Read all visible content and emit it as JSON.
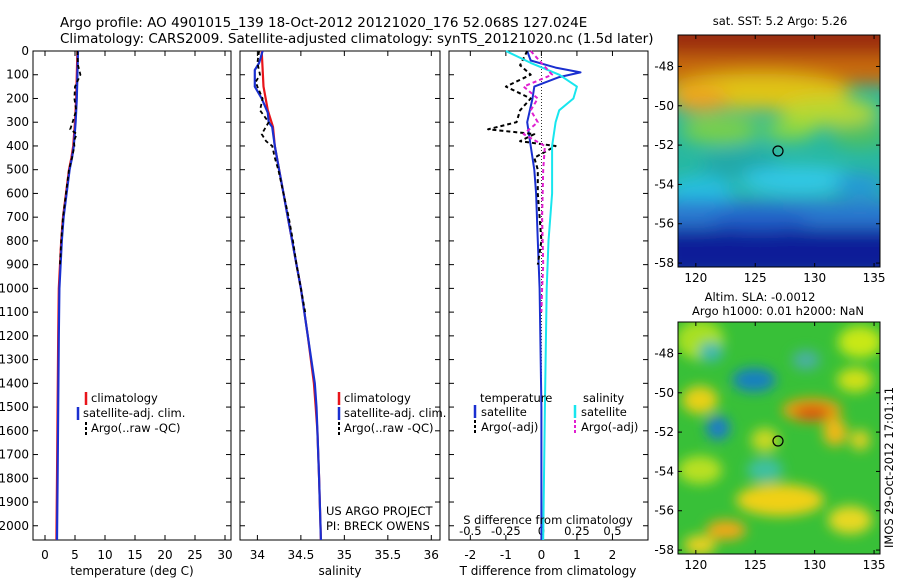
{
  "header": {
    "line1": "Argo profile: AO 4901015_139 18-Oct-2012 20121020_176 52.068S 127.024E",
    "line2": "Climatology: CARS2009. Satellite-adjusted climatology: synTS_20121020.nc (1.5d later)"
  },
  "colors": {
    "clim": "#e8141a",
    "sat": "#1a2fd0",
    "argo": "#000000",
    "cyan": "#18e6ee",
    "magenta": "#e020d0"
  },
  "chart_data": [
    {
      "type": "line",
      "name": "temperature-profile",
      "xlabel": "temperature (deg C)",
      "xlim": [
        -2,
        31
      ],
      "ylim": [
        2060,
        0
      ],
      "xticks": [
        0,
        5,
        10,
        15,
        20,
        25,
        30
      ],
      "yticks": [
        0,
        100,
        200,
        300,
        400,
        500,
        600,
        700,
        800,
        900,
        1000,
        1100,
        1200,
        1300,
        1400,
        1500,
        1600,
        1700,
        1800,
        1900,
        2000
      ],
      "legend": [
        "climatology",
        "satellite-adj. clim.",
        "Argo(..raw -QC)"
      ],
      "series": [
        {
          "key": "climatology",
          "depth": [
            0,
            100,
            200,
            300,
            400,
            450,
            500,
            600,
            700,
            800,
            900,
            1000,
            1200,
            1500,
            1800,
            2060
          ],
          "values": [
            5.4,
            5.3,
            5.2,
            5.0,
            4.7,
            4.4,
            4.0,
            3.5,
            3.0,
            2.7,
            2.5,
            2.3,
            2.2,
            2.1,
            2.0,
            1.9
          ]
        },
        {
          "key": "satellite",
          "depth": [
            0,
            100,
            200,
            300,
            400,
            450,
            500,
            600,
            700,
            800,
            900,
            1000,
            1200,
            1500,
            1800,
            2060
          ],
          "values": [
            5.5,
            5.4,
            5.3,
            5.1,
            4.8,
            4.5,
            4.1,
            3.6,
            3.1,
            2.8,
            2.6,
            2.4,
            2.3,
            2.2,
            2.1,
            2.0
          ]
        },
        {
          "key": "argo",
          "depth": [
            0,
            60,
            100,
            150,
            200,
            250,
            300,
            330,
            350,
            380,
            400,
            450,
            500,
            600,
            700,
            800,
            900
          ],
          "values": [
            5.4,
            5.5,
            5.9,
            5.0,
            4.9,
            5.2,
            4.6,
            4.2,
            5.3,
            4.8,
            4.9,
            4.5,
            4.0,
            3.5,
            3.0,
            2.7,
            2.5
          ]
        }
      ]
    },
    {
      "type": "line",
      "name": "salinity-profile",
      "xlabel": "salinity",
      "xlim": [
        33.8,
        36.1
      ],
      "ylim": [
        2060,
        0
      ],
      "xticks": [
        34,
        34.5,
        35,
        35.5,
        36
      ],
      "legend": [
        "climatology",
        "satellite-adj. clim.",
        "Argo(..raw -QC)"
      ],
      "annotation": [
        "US ARGO PROJECT",
        "PI: BRECK OWENS"
      ],
      "series": [
        {
          "key": "climatology",
          "depth": [
            0,
            150,
            250,
            320,
            400,
            500,
            600,
            700,
            800,
            900,
            1000,
            1200,
            1400,
            1500,
            1600,
            1800,
            2060
          ],
          "values": [
            34.05,
            34.07,
            34.12,
            34.18,
            34.2,
            34.25,
            34.3,
            34.35,
            34.4,
            34.45,
            34.5,
            34.58,
            34.65,
            34.67,
            34.69,
            34.71,
            34.73
          ]
        },
        {
          "key": "satellite",
          "depth": [
            0,
            50,
            80,
            150,
            200,
            260,
            300,
            320,
            400,
            500,
            600,
            700,
            800,
            900,
            1000,
            1200,
            1400,
            1500,
            1600,
            1800,
            2060
          ],
          "values": [
            34.06,
            34.02,
            33.97,
            33.97,
            34.05,
            34.12,
            34.13,
            34.17,
            34.2,
            34.25,
            34.3,
            34.35,
            34.4,
            34.45,
            34.5,
            34.58,
            34.66,
            34.68,
            34.69,
            34.71,
            34.73
          ]
        },
        {
          "key": "argo",
          "depth": [
            0,
            50,
            100,
            130,
            150,
            200,
            250,
            270,
            300,
            350,
            380,
            400,
            450,
            500,
            600,
            700,
            800,
            900,
            1000,
            1100
          ],
          "values": [
            34.02,
            34.0,
            34.03,
            33.98,
            34.0,
            34.06,
            34.03,
            34.07,
            34.13,
            34.05,
            34.1,
            34.17,
            34.2,
            34.24,
            34.3,
            34.36,
            34.41,
            34.45,
            34.5,
            34.55
          ]
        }
      ]
    },
    {
      "type": "line",
      "name": "difference-profile",
      "xlabel": "T difference from climatology",
      "xlabel2": "S difference from climatology",
      "xlim": [
        -2.6,
        3.0
      ],
      "ylim": [
        2060,
        0
      ],
      "xticks": [
        -2,
        -1,
        0,
        1,
        2
      ],
      "xticks2": [
        {
          "pos": -2,
          "label": "-0.5"
        },
        {
          "pos": -1,
          "label": "-0.25"
        },
        {
          "pos": 0,
          "label": "0"
        },
        {
          "pos": 1,
          "label": "0.25"
        },
        {
          "pos": 2,
          "label": "0.5"
        }
      ],
      "legend": {
        "temperature": [
          "satellite",
          "Argo(-adj)"
        ],
        "salinity": [
          "satellite",
          "Argo(-adj)"
        ]
      },
      "series": [
        {
          "key": "t_sat",
          "depth": [
            0,
            40,
            70,
            90,
            110,
            150,
            200,
            300,
            400,
            500,
            600,
            800,
            1000,
            1500,
            2060
          ],
          "values": [
            -0.4,
            -0.3,
            0.4,
            1.1,
            0.5,
            -0.2,
            -0.25,
            -0.4,
            -0.3,
            -0.2,
            -0.15,
            -0.1,
            -0.05,
            0,
            0
          ]
        },
        {
          "key": "t_argo",
          "depth": [
            0,
            60,
            100,
            150,
            200,
            250,
            300,
            330,
            350,
            380,
            400,
            450,
            500,
            600,
            800,
            900
          ],
          "values": [
            -0.4,
            -0.6,
            -0.3,
            -1.0,
            -0.3,
            -0.6,
            -0.7,
            -1.5,
            -0.2,
            -0.6,
            0.4,
            -0.2,
            -0.1,
            -0.1,
            0,
            -0.1
          ]
        },
        {
          "key": "s_sat",
          "depth": [
            0,
            50,
            100,
            150,
            200,
            250,
            300,
            400,
            500,
            600,
            800,
            1000,
            1500,
            2060
          ],
          "values": [
            -1.0,
            -0.3,
            0.5,
            1.0,
            0.9,
            0.5,
            0.4,
            0.3,
            0.3,
            0.3,
            0.2,
            0.15,
            0.1,
            0.05
          ]
        },
        {
          "key": "s_argo",
          "depth": [
            0,
            100,
            150,
            200,
            250,
            300,
            350,
            400,
            500,
            700,
            900,
            1000,
            1100
          ],
          "values": [
            -0.3,
            0.3,
            -0.5,
            -0.1,
            -0.3,
            -0.1,
            -0.5,
            0.1,
            0.05,
            0.02,
            0.05,
            0.02,
            0.0
          ]
        }
      ]
    },
    {
      "type": "heatmap",
      "name": "sst-map",
      "title": "sat. SST: 5.2 Argo: 5.26",
      "xlim": [
        118.5,
        135.5
      ],
      "ylim": [
        -58.2,
        -46.4
      ],
      "xticks": [
        120,
        125,
        130,
        135
      ],
      "yticks": [
        -48,
        -50,
        -52,
        -54,
        -56,
        -58
      ],
      "marker": {
        "lon": 127.024,
        "lat": -52.068
      }
    },
    {
      "type": "heatmap",
      "name": "sla-map",
      "title": "Altim. SLA: -0.0012",
      "subtitle": "Argo h1000: 0.01 h2000: NaN",
      "xlim": [
        118.5,
        135.5
      ],
      "ylim": [
        -58.2,
        -46.4
      ],
      "xticks": [
        120,
        125,
        130,
        135
      ],
      "yticks": [
        -48,
        -50,
        -52,
        -54,
        -56,
        -58
      ],
      "marker": {
        "lon": 127.024,
        "lat": -52.068
      }
    }
  ],
  "side_label": "IMOS 29-Oct-2012 17:01:11"
}
